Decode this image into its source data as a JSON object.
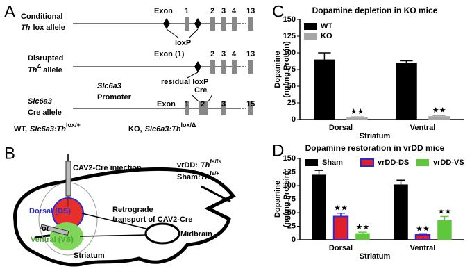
{
  "panel_labels": [
    "A",
    "B",
    "C",
    "D"
  ],
  "panel_a": {
    "conditional": [
      "Conditional",
      "Th",
      "lox allele"
    ],
    "exon_labels_1": [
      "Exon",
      "1",
      "2",
      "3",
      "4",
      "13"
    ],
    "loxp": "loxP",
    "disrupted": [
      "Disrupted",
      "Th",
      "Δ",
      "allele"
    ],
    "exon_labels_2": [
      "Exon (1)",
      "2",
      "3",
      "4",
      "13"
    ],
    "residual": "residual loxP",
    "cre_allele": [
      "Slc6a3",
      "Cre allele"
    ],
    "promoter": [
      "Slc6a3",
      "Promoter"
    ],
    "exon_labels_3": [
      "Exon",
      "1",
      "Cre",
      "2",
      "3",
      "15"
    ],
    "genotypes": [
      {
        "prefix": "WT,",
        "gene": "Slc6a3",
        "th": ":Th",
        "sup": "lox/+"
      },
      {
        "prefix": "KO,",
        "gene": "Slc6a3",
        "th": ":Th",
        "sup": "lox/Δ"
      }
    ]
  },
  "panel_b": {
    "injection": "CAV2-Cre injection",
    "vrdd": [
      "vrDD:",
      "Th",
      "fs/fs"
    ],
    "sham": [
      "Sham:",
      "Th",
      "fs/+"
    ],
    "dorsal": "Dorsal (DS)",
    "transport": [
      "Retrograde",
      "transport of CAV2-Cre"
    ],
    "or": "or",
    "ventral": "Ventral (VS)",
    "midbrain": "Midbrain",
    "striatum": "Striatum"
  },
  "chart_data": [
    {
      "type": "bar",
      "title": "Dopamine depletion in KO mice",
      "ylabel": [
        "Dopamine",
        "(ng/mg Protein)"
      ],
      "xlabel": "Striatum",
      "categories": [
        "Dorsal",
        "Ventral"
      ],
      "series": [
        {
          "name": "WT",
          "color": "#000000",
          "values": [
            90,
            85
          ],
          "errors": [
            10,
            3
          ]
        },
        {
          "name": "KO",
          "color": "#a6a6a6",
          "values": [
            3,
            5
          ],
          "errors": [
            1,
            1
          ],
          "significance": [
            "★★",
            "★★"
          ]
        }
      ],
      "ylim": [
        0,
        150
      ],
      "yticks": [
        0,
        25,
        50,
        75,
        100,
        125,
        150
      ],
      "legend": "upper left"
    },
    {
      "type": "bar",
      "title": "Dopamine restoration in vrDD mice",
      "ylabel": [
        "Dopamine",
        "(ng/mg Protein)"
      ],
      "xlabel": "Striatum",
      "categories": [
        "Dorsal",
        "Ventral"
      ],
      "series": [
        {
          "name": "Sham",
          "color": "#000000",
          "values": [
            120,
            102
          ],
          "errors": [
            8,
            8
          ]
        },
        {
          "name": "vrDD-DS",
          "color": "#e0202a",
          "edge": "#2a2ad0",
          "values": [
            43,
            9
          ],
          "errors": [
            6,
            2
          ],
          "significance": [
            "★★",
            "★★"
          ]
        },
        {
          "name": "vrDD-VS",
          "color": "#5dc83a",
          "values": [
            12,
            36
          ],
          "errors": [
            2,
            7
          ],
          "significance": [
            "★★",
            "★★"
          ]
        }
      ],
      "ylim": [
        0,
        150
      ],
      "yticks": [
        0,
        25,
        50,
        75,
        100,
        125,
        150
      ],
      "legend": "top"
    }
  ]
}
